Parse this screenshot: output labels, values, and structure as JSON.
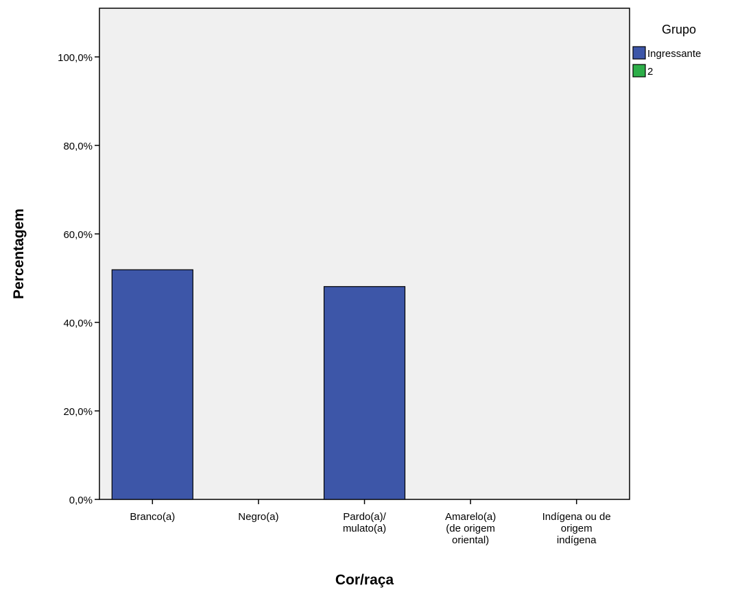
{
  "chart_data": {
    "type": "bar",
    "xlabel": "Cor/raça",
    "ylabel": "Percentagem",
    "categories": [
      [
        "Branco(a)"
      ],
      [
        "Negro(a)"
      ],
      [
        "Pardo(a)/",
        "mulato(a)"
      ],
      [
        "Amarelo(a)",
        "(de origem",
        "oriental)"
      ],
      [
        "Indígena ou de",
        "origem",
        "indígena"
      ]
    ],
    "series": [
      {
        "name": "Ingressante",
        "color": "#3d56a8",
        "values": [
          51.9,
          0,
          48.1,
          0,
          0
        ]
      },
      {
        "name": "2",
        "color": "#2dae49",
        "values": [
          0,
          0,
          0,
          0,
          0
        ]
      }
    ],
    "ylim": [
      0,
      111
    ],
    "yticks": [
      0,
      20,
      40,
      60,
      80,
      100
    ],
    "ytick_labels": [
      "0,0%",
      "20,0%",
      "40,0%",
      "60,0%",
      "80,0%",
      "100,0%"
    ],
    "grid": false,
    "legend": {
      "title": "Grupo",
      "placement": "right"
    },
    "plot_background": "#f0f0f0"
  }
}
